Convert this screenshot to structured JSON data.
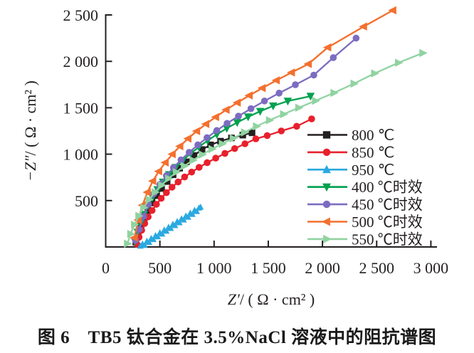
{
  "figure": {
    "caption": "图 6　TB5 钛合金在 3.5%NaCl 溶液中的阻抗谱图"
  },
  "chart_data": {
    "type": "line",
    "title": "",
    "xlabel": "Z′/ ( Ω · cm² )",
    "ylabel": "−Z″/ ( Ω · cm² )",
    "xlim": [
      0,
      3150
    ],
    "ylim": [
      0,
      2600
    ],
    "grid": false,
    "legend_position": "inside-right",
    "x_ticks": [
      {
        "v": 0,
        "label": "0"
      },
      {
        "v": 500,
        "label": "500"
      },
      {
        "v": 1000,
        "label": "1 000"
      },
      {
        "v": 1500,
        "label": "1 500"
      },
      {
        "v": 2000,
        "label": "2 000"
      },
      {
        "v": 2500,
        "label": "2 500"
      },
      {
        "v": 3000,
        "label": "3 000"
      }
    ],
    "y_ticks": [
      {
        "v": 500,
        "label": "500"
      },
      {
        "v": 1000,
        "label": "1 000"
      },
      {
        "v": 1500,
        "label": "1 500"
      },
      {
        "v": 2000,
        "label": "2 000"
      },
      {
        "v": 2500,
        "label": "2 500"
      }
    ],
    "series": [
      {
        "name": "800 ℃",
        "color": "#231f20",
        "marker": "square",
        "marker_size": 4.6,
        "line_width": 2.3,
        "points": [
          [
            278,
            50
          ],
          [
            300,
            138
          ],
          [
            326,
            225
          ],
          [
            356,
            310
          ],
          [
            390,
            393
          ],
          [
            428,
            474
          ],
          [
            470,
            553
          ],
          [
            516,
            630
          ],
          [
            567,
            705
          ],
          [
            622,
            778
          ],
          [
            682,
            849
          ],
          [
            746,
            918
          ],
          [
            815,
            985
          ],
          [
            889,
            1050
          ],
          [
            968,
            1100
          ],
          [
            1060,
            1140
          ],
          [
            1160,
            1175
          ],
          [
            1265,
            1205
          ],
          [
            1350,
            1230
          ]
        ]
      },
      {
        "name": "850 ℃",
        "color": "#e8202c",
        "marker": "circle",
        "marker_size": 4.8,
        "line_width": 2.3,
        "points": [
          [
            288,
            30
          ],
          [
            308,
            105
          ],
          [
            332,
            180
          ],
          [
            360,
            253
          ],
          [
            392,
            324
          ],
          [
            428,
            393
          ],
          [
            468,
            460
          ],
          [
            512,
            524
          ],
          [
            560,
            585
          ],
          [
            612,
            644
          ],
          [
            668,
            700
          ],
          [
            728,
            754
          ],
          [
            793,
            807
          ],
          [
            862,
            858
          ],
          [
            936,
            908
          ],
          [
            1015,
            957
          ],
          [
            1100,
            1008
          ],
          [
            1190,
            1060
          ],
          [
            1285,
            1112
          ],
          [
            1385,
            1165
          ],
          [
            1490,
            1200
          ],
          [
            1620,
            1250
          ],
          [
            1762,
            1300
          ],
          [
            1900,
            1380
          ]
        ]
      },
      {
        "name": "950 ℃",
        "color": "#2aa9e0",
        "marker": "triangle-up",
        "marker_size": 3.9,
        "line_width": 2,
        "points": [
          [
            320,
            10
          ],
          [
            340,
            33
          ],
          [
            360,
            18
          ],
          [
            380,
            63
          ],
          [
            400,
            50
          ],
          [
            420,
            93
          ],
          [
            440,
            81
          ],
          [
            460,
            124
          ],
          [
            480,
            111
          ],
          [
            500,
            154
          ],
          [
            520,
            141
          ],
          [
            540,
            184
          ],
          [
            560,
            171
          ],
          [
            580,
            214
          ],
          [
            600,
            201
          ],
          [
            620,
            245
          ],
          [
            640,
            232
          ],
          [
            660,
            275
          ],
          [
            680,
            262
          ],
          [
            700,
            305
          ],
          [
            720,
            292
          ],
          [
            740,
            335
          ],
          [
            760,
            322
          ],
          [
            780,
            365
          ],
          [
            800,
            352
          ],
          [
            820,
            396
          ],
          [
            840,
            383
          ],
          [
            860,
            420
          ],
          [
            875,
            430
          ]
        ]
      },
      {
        "name": "400 ℃时效",
        "color": "#00a14e",
        "marker": "triangle-down",
        "marker_size": 5,
        "line_width": 2.3,
        "points": [
          [
            270,
            60
          ],
          [
            295,
            160
          ],
          [
            323,
            258
          ],
          [
            355,
            352
          ],
          [
            391,
            444
          ],
          [
            432,
            532
          ],
          [
            478,
            618
          ],
          [
            529,
            700
          ],
          [
            585,
            780
          ],
          [
            646,
            858
          ],
          [
            712,
            933
          ],
          [
            783,
            1006
          ],
          [
            859,
            1077
          ],
          [
            940,
            1146
          ],
          [
            1026,
            1213
          ],
          [
            1117,
            1278
          ],
          [
            1213,
            1341
          ],
          [
            1314,
            1402
          ],
          [
            1425,
            1462
          ],
          [
            1545,
            1520
          ],
          [
            1680,
            1572
          ],
          [
            1890,
            1625
          ]
        ]
      },
      {
        "name": "450 ℃时效",
        "color": "#7c6cc1",
        "marker": "circle",
        "marker_size": 4.8,
        "line_width": 2.3,
        "points": [
          [
            275,
            70
          ],
          [
            310,
            190
          ],
          [
            350,
            330
          ],
          [
            395,
            460
          ],
          [
            445,
            575
          ],
          [
            500,
            675
          ],
          [
            560,
            768
          ],
          [
            625,
            855
          ],
          [
            695,
            938
          ],
          [
            770,
            1020
          ],
          [
            850,
            1100
          ],
          [
            935,
            1178
          ],
          [
            1025,
            1255
          ],
          [
            1120,
            1332
          ],
          [
            1225,
            1410
          ],
          [
            1340,
            1490
          ],
          [
            1465,
            1573
          ],
          [
            1600,
            1658
          ],
          [
            1750,
            1748
          ],
          [
            1920,
            1852
          ],
          [
            2100,
            2040
          ],
          [
            2310,
            2250
          ]
        ]
      },
      {
        "name": "500 ℃时效",
        "color": "#f4702e",
        "marker": "triangle-left",
        "marker_size": 5,
        "line_width": 2.4,
        "points": [
          [
            265,
            100
          ],
          [
            300,
            290
          ],
          [
            340,
            450
          ],
          [
            385,
            590
          ],
          [
            435,
            710
          ],
          [
            490,
            815
          ],
          [
            550,
            910
          ],
          [
            615,
            1000
          ],
          [
            685,
            1085
          ],
          [
            760,
            1168
          ],
          [
            840,
            1248
          ],
          [
            925,
            1325
          ],
          [
            1015,
            1400
          ],
          [
            1112,
            1478
          ],
          [
            1215,
            1555
          ],
          [
            1325,
            1632
          ],
          [
            1445,
            1712
          ],
          [
            1575,
            1795
          ],
          [
            1715,
            1880
          ],
          [
            1870,
            1972
          ],
          [
            2050,
            2150
          ],
          [
            2380,
            2375
          ],
          [
            2650,
            2550
          ]
        ]
      },
      {
        "name": "550 ℃时效",
        "color": "#90d3a1",
        "marker": "triangle-right",
        "marker_size": 5,
        "line_width": 2.3,
        "points": [
          [
            200,
            35
          ],
          [
            230,
            140
          ],
          [
            265,
            240
          ],
          [
            305,
            335
          ],
          [
            350,
            425
          ],
          [
            400,
            510
          ],
          [
            455,
            590
          ],
          [
            515,
            665
          ],
          [
            580,
            737
          ],
          [
            650,
            806
          ],
          [
            725,
            872
          ],
          [
            805,
            935
          ],
          [
            890,
            996
          ],
          [
            980,
            1055
          ],
          [
            1075,
            1112
          ],
          [
            1175,
            1170
          ],
          [
            1280,
            1235
          ],
          [
            1390,
            1300
          ],
          [
            1510,
            1365
          ],
          [
            1640,
            1430
          ],
          [
            1780,
            1500
          ],
          [
            1935,
            1575
          ],
          [
            2105,
            1660
          ],
          [
            2290,
            1760
          ],
          [
            2480,
            1870
          ],
          [
            2700,
            1985
          ],
          [
            2925,
            2090
          ]
        ]
      }
    ]
  }
}
